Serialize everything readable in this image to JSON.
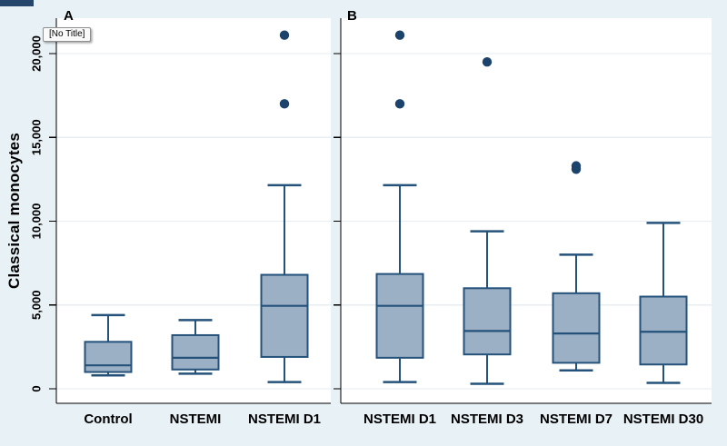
{
  "app": {
    "tooltip_text": "[No Title]"
  },
  "colors": {
    "background": "#e8f1f5",
    "plot_background": "#ffffff",
    "gridline": "#e7edf1",
    "axis": "#000000",
    "box_fill": "#9bafc5",
    "box_stroke": "#24527a",
    "outlier": "#1b436b",
    "label": "#000000",
    "corner_bar": "#25456b"
  },
  "chart_data": [
    {
      "type": "box",
      "panel_label": "A",
      "ylabel": "Classical monocytes",
      "ylim": [
        0,
        22000
      ],
      "yticks": [
        0,
        5000,
        10000,
        15000,
        20000
      ],
      "ytick_labels": [
        "0",
        "5,000",
        "10,000",
        "15,000",
        "20,000"
      ],
      "grid": true,
      "categories": [
        "Control",
        "NSTEMI",
        "NSTEMI D1"
      ],
      "series": [
        {
          "category": "Control",
          "whisker_low": 800,
          "q1": 1000,
          "median": 1400,
          "q3": 2800,
          "whisker_high": 4400,
          "outliers": []
        },
        {
          "category": "NSTEMI",
          "whisker_low": 900,
          "q1": 1150,
          "median": 1850,
          "q3": 3200,
          "whisker_high": 4100,
          "outliers": []
        },
        {
          "category": "NSTEMI D1",
          "whisker_low": 400,
          "q1": 1900,
          "median": 4950,
          "q3": 6800,
          "whisker_high": 12150,
          "outliers": [
            17000,
            21100
          ]
        }
      ]
    },
    {
      "type": "box",
      "panel_label": "B",
      "ylabel": "Classical monocytes",
      "ylim": [
        0,
        22000
      ],
      "yticks": [
        0,
        5000,
        10000,
        15000,
        20000
      ],
      "ytick_labels": [],
      "grid": true,
      "categories": [
        "NSTEMI D1",
        "NSTEMI D3",
        "NSTEMI D7",
        "NSTEMI D30"
      ],
      "series": [
        {
          "category": "NSTEMI D1",
          "whisker_low": 400,
          "q1": 1850,
          "median": 4950,
          "q3": 6850,
          "whisker_high": 12150,
          "outliers": [
            17000,
            21100
          ]
        },
        {
          "category": "NSTEMI D3",
          "whisker_low": 300,
          "q1": 2050,
          "median": 3450,
          "q3": 6000,
          "whisker_high": 9400,
          "outliers": [
            19500
          ]
        },
        {
          "category": "NSTEMI D7",
          "whisker_low": 1100,
          "q1": 1550,
          "median": 3300,
          "q3": 5700,
          "whisker_high": 8000,
          "outliers": [
            13100,
            13300
          ]
        },
        {
          "category": "NSTEMI D30",
          "whisker_low": 350,
          "q1": 1450,
          "median": 3400,
          "q3": 5500,
          "whisker_high": 9900,
          "outliers": []
        }
      ]
    }
  ]
}
